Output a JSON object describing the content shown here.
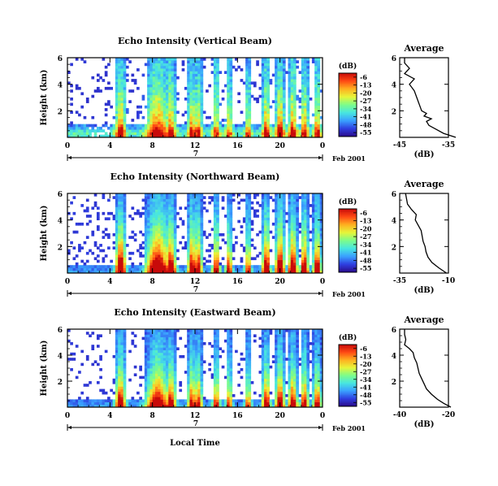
{
  "chart_data": {
    "type": "heatmap",
    "colormap_stops": [
      "#2a0a8a",
      "#2f3fe0",
      "#3aa0ff",
      "#48e6e0",
      "#7dfc8a",
      "#e6f53a",
      "#ffb020",
      "#ff4a14",
      "#c80a0a"
    ],
    "colorbar": {
      "label": "(dB)",
      "ticks": [
        "-6",
        "-13",
        "-20",
        "-27",
        "-34",
        "-41",
        "-48",
        "-55"
      ],
      "range": [
        -55,
        -6
      ]
    },
    "x_axis": {
      "ticks": [
        "0",
        "4",
        "8",
        "12",
        "16",
        "20",
        "0"
      ],
      "range_hours": [
        0,
        24
      ],
      "date_tick": "7",
      "date_label": "Feb 2001",
      "label": "Local Time"
    },
    "y_axis": {
      "label": "Height (km)",
      "ticks": [
        "2",
        "4",
        "6"
      ],
      "range_km": [
        0,
        6
      ]
    },
    "panels": [
      {
        "title": "Echo Intensity (Vertical Beam)",
        "profile_title": "Average",
        "profile_xlabel": "(dB)",
        "profile_xticks": [
          "-45",
          "-35"
        ],
        "profile_xrange": [
          -45,
          -35
        ],
        "profile_yticks": [
          "2",
          "4",
          "6"
        ],
        "profile": [
          [
            0.0,
            -33.5
          ],
          [
            0.3,
            -36
          ],
          [
            0.6,
            -37.5
          ],
          [
            0.9,
            -39
          ],
          [
            1.2,
            -39.5
          ],
          [
            1.4,
            -38.5
          ],
          [
            1.6,
            -40
          ],
          [
            1.8,
            -39.5
          ],
          [
            2.0,
            -40.5
          ],
          [
            2.5,
            -41
          ],
          [
            3.0,
            -41.5
          ],
          [
            3.5,
            -42
          ],
          [
            4.0,
            -43
          ],
          [
            4.4,
            -42
          ],
          [
            4.8,
            -44
          ],
          [
            5.2,
            -43
          ],
          [
            5.6,
            -44
          ],
          [
            6.0,
            -44
          ]
        ]
      },
      {
        "title": "Echo Intensity (Northward Beam)",
        "profile_title": "Average",
        "profile_xlabel": "(dB)",
        "profile_xticks": [
          "-35",
          "-10"
        ],
        "profile_xrange": [
          -35,
          -10
        ],
        "profile_yticks": [
          "2",
          "4",
          "6"
        ],
        "profile": [
          [
            0.0,
            -11
          ],
          [
            0.4,
            -15
          ],
          [
            0.8,
            -18.5
          ],
          [
            1.2,
            -20.5
          ],
          [
            1.6,
            -21.5
          ],
          [
            2.0,
            -22
          ],
          [
            2.4,
            -23
          ],
          [
            2.8,
            -23.5
          ],
          [
            3.2,
            -24
          ],
          [
            3.6,
            -25.5
          ],
          [
            4.0,
            -27
          ],
          [
            4.4,
            -26.5
          ],
          [
            4.8,
            -29
          ],
          [
            5.2,
            -31
          ],
          [
            5.6,
            -31.5
          ],
          [
            6.0,
            -32
          ]
        ]
      },
      {
        "title": "Echo Intensity (Eastward Beam)",
        "profile_title": "Average",
        "profile_xlabel": "(dB)",
        "profile_xticks": [
          "-40",
          "-20"
        ],
        "profile_xrange": [
          -40,
          -20
        ],
        "profile_yticks": [
          "2",
          "4",
          "6"
        ],
        "profile": [
          [
            0.0,
            -19
          ],
          [
            0.3,
            -22
          ],
          [
            0.6,
            -24.5
          ],
          [
            1.0,
            -27
          ],
          [
            1.4,
            -29
          ],
          [
            1.8,
            -30
          ],
          [
            2.2,
            -31
          ],
          [
            2.6,
            -32
          ],
          [
            3.0,
            -32.5
          ],
          [
            3.4,
            -33
          ],
          [
            3.8,
            -34
          ],
          [
            4.2,
            -34.5
          ],
          [
            4.5,
            -36
          ],
          [
            4.8,
            -38
          ],
          [
            5.2,
            -37.5
          ],
          [
            5.6,
            -38
          ],
          [
            6.0,
            -38
          ]
        ]
      }
    ]
  }
}
